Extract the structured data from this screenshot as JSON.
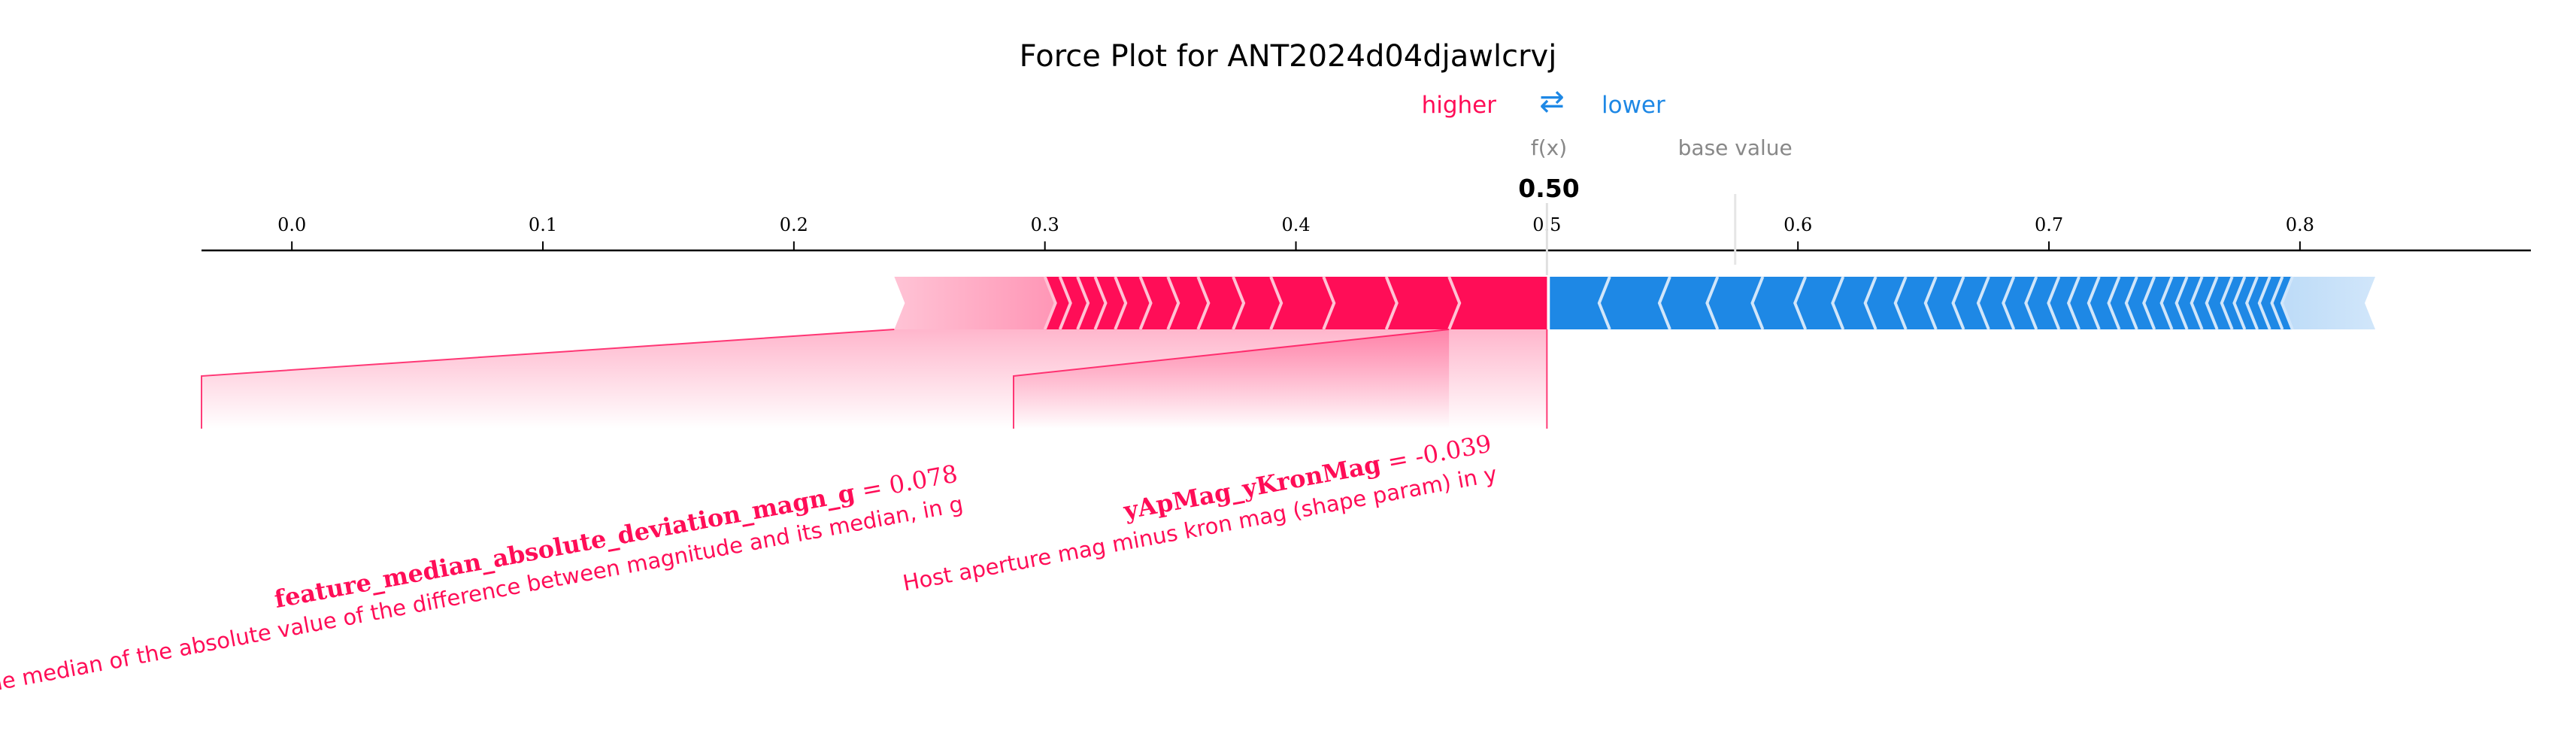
{
  "chart_data": {
    "type": "force",
    "title": "Force Plot for ANT2024d04djawlcrvj",
    "legend": {
      "higher_label": "higher",
      "lower_label": "lower",
      "arrow_glyph": "⇄",
      "higher_color": "#ff0d57",
      "lower_color": "#1e88e5"
    },
    "fx_label": "f(x)",
    "fx_value": 0.5,
    "fx_display": "0.50",
    "base_value_label": "base value",
    "base_value": 0.575,
    "xlim": [
      -0.036,
      0.892
    ],
    "ticks": [
      {
        "value": 0.0,
        "label": "0.0"
      },
      {
        "value": 0.1,
        "label": "0.1"
      },
      {
        "value": 0.2,
        "label": "0.2"
      },
      {
        "value": 0.3,
        "label": "0.3"
      },
      {
        "value": 0.4,
        "label": "0.4"
      },
      {
        "value": 0.5,
        "label": "0.5"
      },
      {
        "value": 0.6,
        "label": "0.6"
      },
      {
        "value": 0.7,
        "label": "0.7"
      },
      {
        "value": 0.8,
        "label": "0.8"
      }
    ],
    "positive_bar": {
      "from": 0.24,
      "to": 0.5,
      "segment_boundaries": [
        0.5,
        0.461,
        0.436,
        0.411,
        0.39,
        0.375,
        0.361,
        0.349,
        0.338,
        0.328,
        0.32,
        0.313,
        0.306,
        0.3
      ]
    },
    "negative_bar": {
      "from": 0.5,
      "to": 0.83,
      "segment_boundaries": [
        0.5,
        0.525,
        0.549,
        0.568,
        0.586,
        0.603,
        0.618,
        0.631,
        0.643,
        0.655,
        0.666,
        0.676,
        0.686,
        0.695,
        0.704,
        0.712,
        0.72,
        0.728,
        0.735,
        0.742,
        0.749,
        0.755,
        0.761,
        0.767,
        0.773,
        0.778,
        0.783,
        0.788,
        0.793,
        0.797
      ]
    },
    "annotations": [
      {
        "feature": "feature_median_absolute_deviation_magn_g",
        "equals": " = 0.078",
        "description": "The median of the absolute value of the difference between magnitude and its median, in g",
        "segment_start": 0.24,
        "segment_end": 0.461,
        "color": "#ff0d57"
      },
      {
        "feature": "yApMag_yKronMag",
        "equals": " = -0.039",
        "description": "Host aperture mag minus kron mag (shape param) in y",
        "segment_start": 0.461,
        "segment_end": 0.5,
        "color": "#ff0d57"
      }
    ]
  }
}
